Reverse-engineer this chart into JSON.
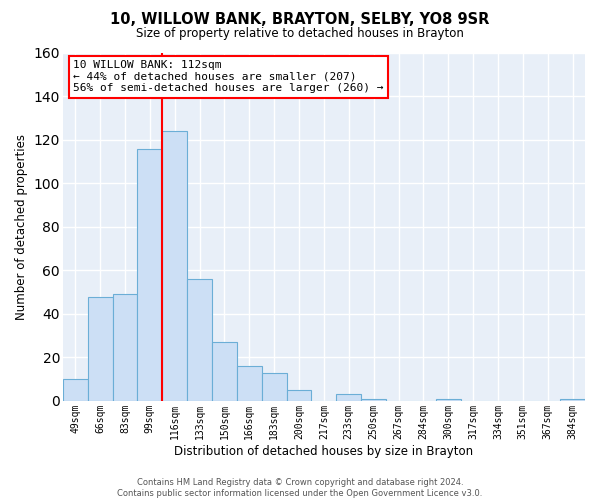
{
  "title": "10, WILLOW BANK, BRAYTON, SELBY, YO8 9SR",
  "subtitle": "Size of property relative to detached houses in Brayton",
  "xlabel": "Distribution of detached houses by size in Brayton",
  "ylabel": "Number of detached properties",
  "categories": [
    "49sqm",
    "66sqm",
    "83sqm",
    "99sqm",
    "116sqm",
    "133sqm",
    "150sqm",
    "166sqm",
    "183sqm",
    "200sqm",
    "217sqm",
    "233sqm",
    "250sqm",
    "267sqm",
    "284sqm",
    "300sqm",
    "317sqm",
    "334sqm",
    "351sqm",
    "367sqm",
    "384sqm"
  ],
  "values": [
    10,
    48,
    49,
    116,
    124,
    56,
    27,
    16,
    13,
    5,
    0,
    3,
    1,
    0,
    0,
    1,
    0,
    0,
    0,
    0,
    1
  ],
  "bar_color": "#ccdff5",
  "bar_edge_color": "#6baed6",
  "vline_color": "red",
  "ylim": [
    0,
    160
  ],
  "yticks": [
    0,
    20,
    40,
    60,
    80,
    100,
    120,
    140,
    160
  ],
  "annotation_title": "10 WILLOW BANK: 112sqm",
  "annotation_line1": "← 44% of detached houses are smaller (207)",
  "annotation_line2": "56% of semi-detached houses are larger (260) →",
  "annotation_box_color": "white",
  "annotation_box_edge": "red",
  "footer_line1": "Contains HM Land Registry data © Crown copyright and database right 2024.",
  "footer_line2": "Contains public sector information licensed under the Open Government Licence v3.0.",
  "plot_bg_color": "#e8eff8",
  "fig_bg_color": "#ffffff",
  "grid_color": "#ffffff"
}
